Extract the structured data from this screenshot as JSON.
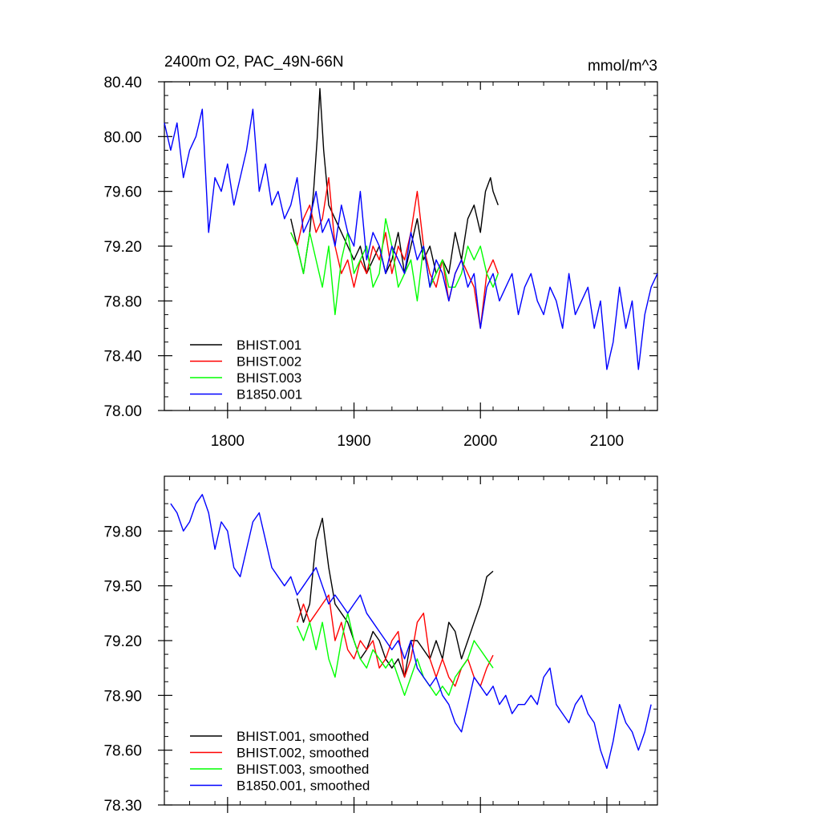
{
  "chart_data": [
    {
      "type": "line",
      "title_left": "2400m O2, PAC_49N-66N",
      "title_right": "mmol/m^3",
      "xlabel": "",
      "ylabel": "",
      "xlim": [
        1750,
        2140
      ],
      "ylim": [
        78.0,
        80.4
      ],
      "xticks": [
        1800,
        1900,
        2000,
        2100
      ],
      "xtick_labels": [
        "1800",
        "1900",
        "2000",
        "2100"
      ],
      "yticks": [
        78.0,
        78.4,
        78.8,
        79.2,
        79.6,
        80.0,
        80.4
      ],
      "ytick_labels": [
        "78.00",
        "78.40",
        "78.80",
        "79.20",
        "79.60",
        "80.00",
        "80.40"
      ],
      "legend_position": "bottom-left",
      "series": [
        {
          "name": "BHIST.001",
          "color": "#000000",
          "x": [
            1850,
            1855,
            1860,
            1865,
            1868,
            1871,
            1873,
            1876,
            1880,
            1885,
            1890,
            1895,
            1900,
            1905,
            1910,
            1915,
            1920,
            1925,
            1930,
            1935,
            1940,
            1945,
            1950,
            1955,
            1960,
            1965,
            1970,
            1975,
            1980,
            1985,
            1990,
            1995,
            2000,
            2004,
            2008,
            2010,
            2014
          ],
          "y": [
            79.4,
            79.2,
            79.0,
            79.3,
            79.6,
            80.0,
            80.35,
            79.9,
            79.5,
            79.4,
            79.3,
            79.2,
            79.1,
            79.2,
            79.0,
            79.1,
            79.2,
            79.0,
            79.1,
            79.3,
            79.0,
            79.2,
            79.4,
            79.1,
            79.2,
            79.0,
            79.1,
            79.0,
            79.3,
            79.1,
            79.4,
            79.5,
            79.3,
            79.6,
            79.7,
            79.6,
            79.5
          ]
        },
        {
          "name": "BHIST.002",
          "color": "#ff0000",
          "x": [
            1850,
            1855,
            1860,
            1865,
            1870,
            1875,
            1880,
            1885,
            1890,
            1895,
            1900,
            1905,
            1910,
            1915,
            1920,
            1925,
            1930,
            1935,
            1940,
            1945,
            1950,
            1955,
            1960,
            1965,
            1970,
            1975,
            1980,
            1985,
            1990,
            1995,
            2000,
            2005,
            2010,
            2014
          ],
          "y": [
            79.3,
            79.2,
            79.4,
            79.5,
            79.3,
            79.4,
            79.7,
            79.2,
            79.0,
            79.1,
            78.9,
            79.1,
            79.0,
            79.2,
            79.1,
            79.3,
            79.0,
            79.2,
            79.1,
            79.3,
            79.6,
            79.2,
            79.0,
            78.9,
            79.1,
            78.8,
            79.0,
            79.1,
            79.0,
            78.9,
            78.6,
            79.0,
            79.1,
            79.0
          ]
        },
        {
          "name": "BHIST.003",
          "color": "#00ff00",
          "x": [
            1850,
            1855,
            1860,
            1865,
            1870,
            1875,
            1880,
            1885,
            1890,
            1895,
            1900,
            1905,
            1910,
            1915,
            1920,
            1925,
            1930,
            1935,
            1940,
            1945,
            1950,
            1955,
            1960,
            1965,
            1970,
            1975,
            1980,
            1985,
            1990,
            1995,
            2000,
            2005,
            2010,
            2014
          ],
          "y": [
            79.3,
            79.2,
            79.0,
            79.3,
            79.1,
            78.9,
            79.2,
            78.7,
            79.1,
            79.3,
            79.0,
            79.1,
            79.2,
            78.9,
            79.0,
            79.4,
            79.2,
            78.9,
            79.0,
            79.1,
            78.8,
            79.2,
            78.9,
            79.0,
            79.1,
            78.9,
            78.9,
            79.0,
            79.2,
            79.1,
            79.2,
            79.0,
            78.9,
            79.0
          ]
        },
        {
          "name": "B1850.001",
          "color": "#0000ff",
          "x": [
            1750,
            1755,
            1760,
            1765,
            1770,
            1775,
            1780,
            1785,
            1790,
            1795,
            1800,
            1805,
            1810,
            1815,
            1820,
            1825,
            1830,
            1835,
            1840,
            1845,
            1850,
            1855,
            1860,
            1865,
            1870,
            1875,
            1880,
            1885,
            1890,
            1895,
            1900,
            1905,
            1910,
            1915,
            1920,
            1925,
            1930,
            1935,
            1940,
            1945,
            1950,
            1955,
            1960,
            1965,
            1970,
            1975,
            1980,
            1985,
            1990,
            1995,
            2000,
            2005,
            2010,
            2015,
            2020,
            2025,
            2030,
            2035,
            2040,
            2045,
            2050,
            2055,
            2060,
            2065,
            2070,
            2075,
            2080,
            2085,
            2090,
            2095,
            2100,
            2105,
            2110,
            2115,
            2120,
            2125,
            2130,
            2135,
            2140
          ],
          "y": [
            80.1,
            79.9,
            80.1,
            79.7,
            79.9,
            80.0,
            80.2,
            79.3,
            79.7,
            79.6,
            79.8,
            79.5,
            79.7,
            79.9,
            80.2,
            79.6,
            79.8,
            79.5,
            79.6,
            79.4,
            79.5,
            79.7,
            79.3,
            79.4,
            79.6,
            79.3,
            79.4,
            79.2,
            79.5,
            79.3,
            79.2,
            79.6,
            79.1,
            79.3,
            79.2,
            79.0,
            79.2,
            79.1,
            79.0,
            79.3,
            79.1,
            79.2,
            78.9,
            79.1,
            79.0,
            78.8,
            79.0,
            79.1,
            78.9,
            79.0,
            78.6,
            78.9,
            79.0,
            78.8,
            78.9,
            79.0,
            78.7,
            78.9,
            79.0,
            78.8,
            78.7,
            78.9,
            78.8,
            78.6,
            79.0,
            78.7,
            78.8,
            78.9,
            78.6,
            78.8,
            78.3,
            78.5,
            78.9,
            78.6,
            78.8,
            78.3,
            78.7,
            78.9,
            79.0
          ]
        }
      ]
    },
    {
      "type": "line",
      "title_left": "",
      "title_right": "",
      "xlabel": "",
      "ylabel": "",
      "xlim": [
        1750,
        2140
      ],
      "ylim": [
        78.3,
        80.1
      ],
      "xticks": [
        1800,
        1900,
        2000,
        2100
      ],
      "xtick_labels": [],
      "yticks": [
        78.3,
        78.6,
        78.9,
        79.2,
        79.5,
        79.8
      ],
      "ytick_labels": [
        "78.30",
        "78.60",
        "78.90",
        "79.20",
        "79.50",
        "79.80"
      ],
      "legend_position": "bottom-left",
      "series": [
        {
          "name": "BHIST.001, smoothed",
          "color": "#000000",
          "x": [
            1855,
            1860,
            1865,
            1870,
            1875,
            1880,
            1885,
            1890,
            1895,
            1900,
            1905,
            1910,
            1915,
            1920,
            1925,
            1930,
            1935,
            1940,
            1945,
            1950,
            1955,
            1960,
            1965,
            1970,
            1975,
            1980,
            1985,
            1990,
            1995,
            2000,
            2005,
            2010
          ],
          "y": [
            79.43,
            79.3,
            79.4,
            79.75,
            79.87,
            79.6,
            79.4,
            79.35,
            79.3,
            79.2,
            79.1,
            79.15,
            79.25,
            79.2,
            79.1,
            79.05,
            79.1,
            79.0,
            79.2,
            79.2,
            79.15,
            79.1,
            79.2,
            79.1,
            79.3,
            79.25,
            79.1,
            79.2,
            79.3,
            79.4,
            79.55,
            79.58
          ]
        },
        {
          "name": "BHIST.002, smoothed",
          "color": "#ff0000",
          "x": [
            1855,
            1860,
            1865,
            1870,
            1875,
            1880,
            1885,
            1890,
            1895,
            1900,
            1905,
            1910,
            1915,
            1920,
            1925,
            1930,
            1935,
            1940,
            1945,
            1950,
            1955,
            1960,
            1965,
            1970,
            1975,
            1980,
            1985,
            1990,
            1995,
            2000,
            2005,
            2010
          ],
          "y": [
            79.3,
            79.4,
            79.3,
            79.35,
            79.4,
            79.45,
            79.2,
            79.3,
            79.15,
            79.1,
            79.2,
            79.15,
            79.2,
            79.05,
            79.1,
            79.2,
            79.25,
            79.0,
            79.1,
            79.3,
            79.35,
            79.1,
            79.0,
            79.1,
            79.0,
            78.95,
            79.05,
            79.1,
            79.0,
            78.95,
            79.05,
            79.12
          ]
        },
        {
          "name": "BHIST.003, smoothed",
          "color": "#00ff00",
          "x": [
            1855,
            1860,
            1865,
            1870,
            1875,
            1880,
            1885,
            1890,
            1895,
            1900,
            1905,
            1910,
            1915,
            1920,
            1925,
            1930,
            1935,
            1940,
            1945,
            1950,
            1955,
            1960,
            1965,
            1970,
            1975,
            1980,
            1985,
            1990,
            1995,
            2000,
            2005,
            2010
          ],
          "y": [
            79.28,
            79.2,
            79.3,
            79.15,
            79.3,
            79.1,
            79.0,
            79.2,
            79.35,
            79.2,
            79.1,
            79.05,
            79.15,
            79.1,
            79.05,
            79.1,
            79.0,
            78.9,
            79.0,
            79.1,
            79.0,
            78.95,
            78.9,
            78.95,
            78.9,
            79.0,
            79.05,
            79.1,
            79.2,
            79.15,
            79.1,
            79.05
          ]
        },
        {
          "name": "B1850.001, smoothed",
          "color": "#0000ff",
          "x": [
            1755,
            1760,
            1765,
            1770,
            1775,
            1780,
            1785,
            1790,
            1795,
            1800,
            1805,
            1810,
            1815,
            1820,
            1825,
            1830,
            1835,
            1840,
            1845,
            1850,
            1855,
            1860,
            1865,
            1870,
            1875,
            1880,
            1885,
            1890,
            1895,
            1900,
            1905,
            1910,
            1915,
            1920,
            1925,
            1930,
            1935,
            1940,
            1945,
            1950,
            1955,
            1960,
            1965,
            1970,
            1975,
            1980,
            1985,
            1990,
            1995,
            2000,
            2005,
            2010,
            2015,
            2020,
            2025,
            2030,
            2035,
            2040,
            2045,
            2050,
            2055,
            2060,
            2065,
            2070,
            2075,
            2080,
            2085,
            2090,
            2095,
            2100,
            2105,
            2110,
            2115,
            2120,
            2125,
            2130,
            2135
          ],
          "y": [
            79.95,
            79.9,
            79.8,
            79.85,
            79.95,
            80.0,
            79.9,
            79.7,
            79.85,
            79.8,
            79.6,
            79.55,
            79.7,
            79.85,
            79.9,
            79.75,
            79.6,
            79.55,
            79.5,
            79.55,
            79.45,
            79.5,
            79.55,
            79.6,
            79.5,
            79.4,
            79.45,
            79.4,
            79.35,
            79.4,
            79.45,
            79.35,
            79.3,
            79.25,
            79.2,
            79.15,
            79.2,
            79.1,
            79.2,
            79.05,
            79.0,
            78.95,
            79.0,
            78.9,
            78.85,
            78.75,
            78.7,
            78.85,
            79.0,
            78.95,
            78.9,
            78.95,
            78.85,
            78.9,
            78.8,
            78.85,
            78.85,
            78.9,
            78.85,
            79.0,
            79.05,
            78.85,
            78.8,
            78.75,
            78.85,
            78.9,
            78.8,
            78.75,
            78.6,
            78.5,
            78.65,
            78.85,
            78.75,
            78.7,
            78.6,
            78.7,
            78.85
          ]
        }
      ]
    }
  ]
}
